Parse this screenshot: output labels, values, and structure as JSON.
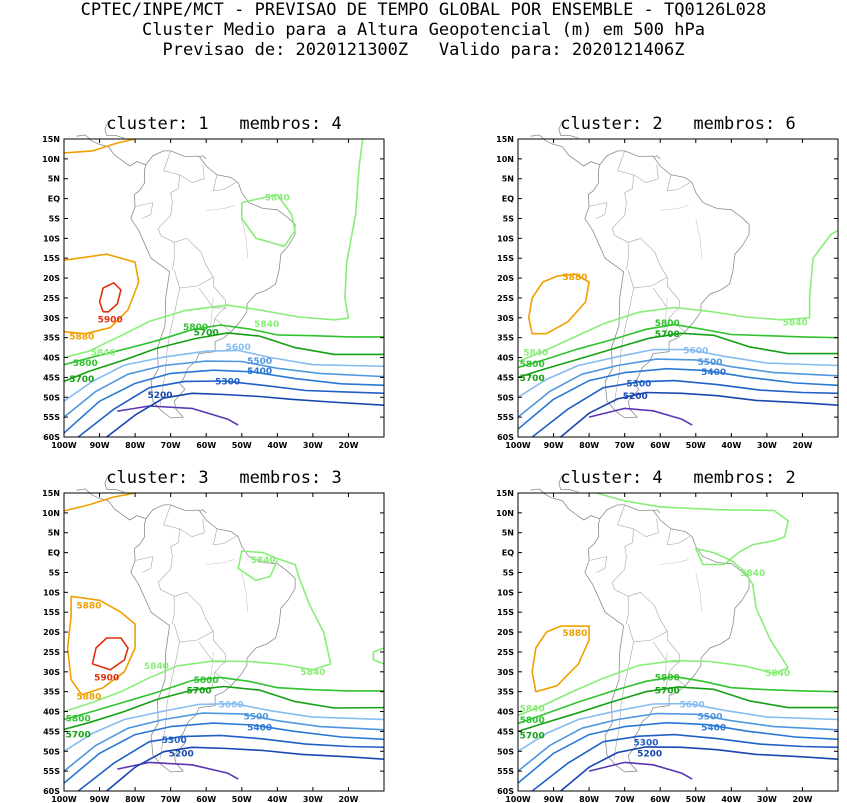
{
  "header": {
    "line1": "CPTEC/INPE/MCT - PREVISAO DE TEMPO GLOBAL POR ENSEMBLE - TQ0126L028",
    "line2": "Cluster Medio para a Altura Geopotencial (m) em 500 hPa",
    "line3": "Previsao de: 2020121300Z   Valido para: 2020121406Z"
  },
  "axes": {
    "lat_labels": [
      "15N",
      "10N",
      "5N",
      "EQ",
      "5S",
      "10S",
      "15S",
      "20S",
      "25S",
      "30S",
      "35S",
      "40S",
      "45S",
      "50S",
      "55S",
      "60S"
    ],
    "lon_labels": [
      "100W",
      "90W",
      "80W",
      "70W",
      "60W",
      "50W",
      "40W",
      "30W",
      "20W"
    ]
  },
  "colors": {
    "5200": "#1846b0",
    "5300": "#1f5fc8",
    "5400": "#2a78d6",
    "5500": "#4f97e0",
    "5600": "#86bdf0",
    "5700": "#14a014",
    "5800": "#2fc32f",
    "5840": "#88ee78",
    "5880": "#f0a000",
    "5900": "#e03010",
    "low": "#5a36b4"
  },
  "panels": [
    {
      "title": "cluster: 1   membros: 4"
    },
    {
      "title": "cluster: 2   membros: 6"
    },
    {
      "title": "cluster: 3   membros: 3"
    },
    {
      "title": "cluster: 4   membros: 2"
    }
  ],
  "contour_labels": [
    "5200",
    "5300",
    "5400",
    "5500",
    "5600",
    "5700",
    "5800",
    "5840",
    "5880",
    "5900"
  ]
}
